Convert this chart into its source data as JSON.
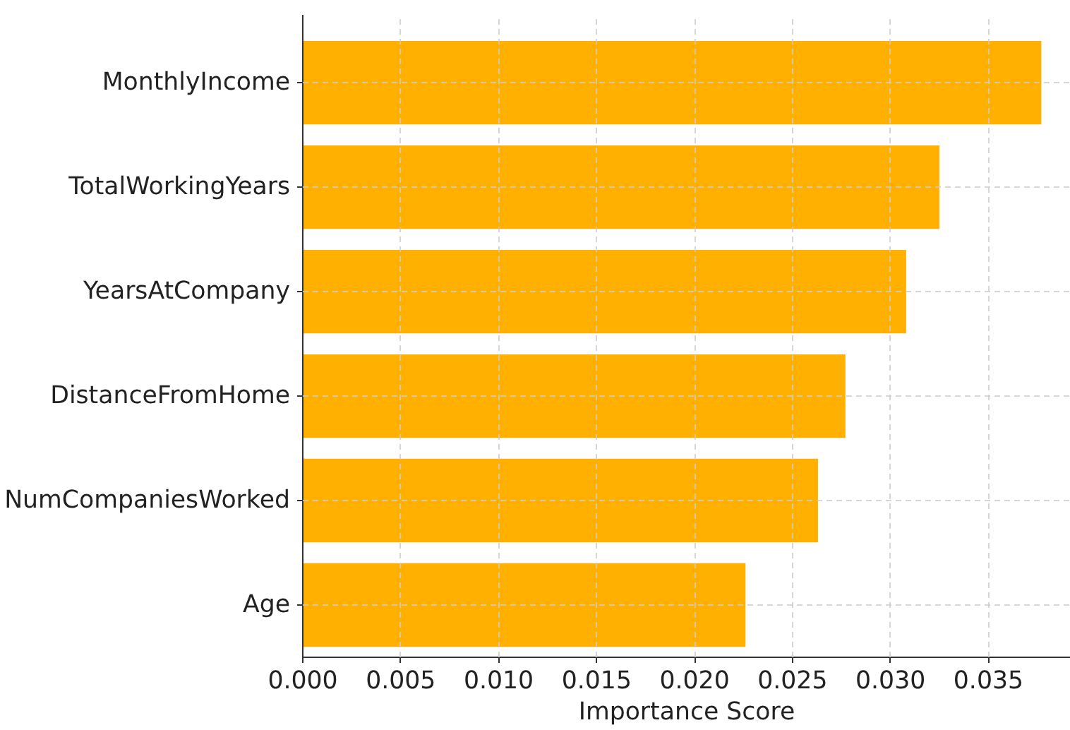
{
  "chart_data": {
    "type": "bar",
    "orientation": "horizontal",
    "xlabel": "Importance Score",
    "categories": [
      "MonthlyIncome",
      "TotalWorkingYears",
      "YearsAtCompany",
      "DistanceFromHome",
      "NumCompaniesWorked",
      "Age"
    ],
    "values": [
      0.0377,
      0.0325,
      0.0308,
      0.0277,
      0.0263,
      0.0226
    ],
    "color": "#ffb000",
    "xlim": [
      0,
      0.0392
    ],
    "xticks": [
      {
        "value": 0,
        "label": "0.000"
      },
      0.005,
      {
        "value": 0.01,
        "label": "0.010"
      },
      0.015,
      {
        "value": 0.02,
        "label": "0.020"
      },
      0.025,
      {
        "value": 0.03,
        "label": "0.030"
      },
      0.035
    ],
    "grid": true
  }
}
